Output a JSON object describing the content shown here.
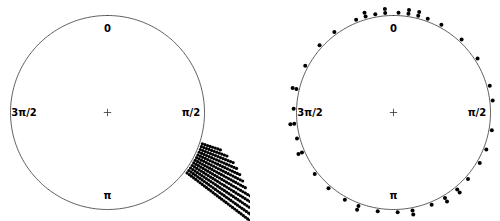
{
  "chart_data": [
    {
      "type": "histogram",
      "x": [
        1.89,
        1.92,
        1.95,
        1.98,
        2.01,
        2.04,
        2.07,
        2.1,
        2.13,
        2.16,
        2.19,
        2.22
      ],
      "values": [
        8,
        11,
        14,
        16,
        18,
        20,
        22,
        25,
        28,
        31,
        33,
        35
      ],
      "xlim": [
        0,
        6.2832
      ],
      "xticks": [
        0,
        {
          "value": 1.5708,
          "label": "π/2"
        },
        {
          "value": 3.1416,
          "label": "π"
        },
        {
          "value": 4.7124,
          "label": "3π/2"
        }
      ],
      "tick_labels": "x",
      "color": "#000000"
    },
    {
      "type": "dotplot",
      "x": [
        5.9,
        6.0,
        6.1,
        6.2,
        0.05,
        0.15,
        0.25,
        0.35,
        0.5,
        0.75,
        1.0,
        1.3,
        1.45,
        1.75,
        1.95,
        2.1,
        2.3,
        2.45,
        2.6,
        2.75,
        2.95,
        3.1,
        3.3,
        3.5,
        3.65,
        3.85,
        4.05,
        4.3,
        4.45,
        4.6,
        4.75,
        4.95,
        5.2,
        5.45,
        5.65
      ],
      "values": [
        1,
        2,
        1,
        2,
        1,
        2,
        2,
        1,
        1,
        1,
        1,
        1,
        1,
        1,
        1,
        1,
        1,
        2,
        2,
        1,
        2,
        1,
        1,
        2,
        1,
        1,
        1,
        2,
        1,
        2,
        1,
        2,
        1,
        1,
        1
      ],
      "xlim": [
        0,
        6.2832
      ],
      "xticks": [
        0,
        {
          "value": 1.5708,
          "label": "π/2"
        },
        {
          "value": 3.1416,
          "label": "π"
        },
        {
          "value": 4.7124,
          "label": "3π/2"
        }
      ],
      "tick_labels": "x",
      "color": "#000000"
    }
  ]
}
